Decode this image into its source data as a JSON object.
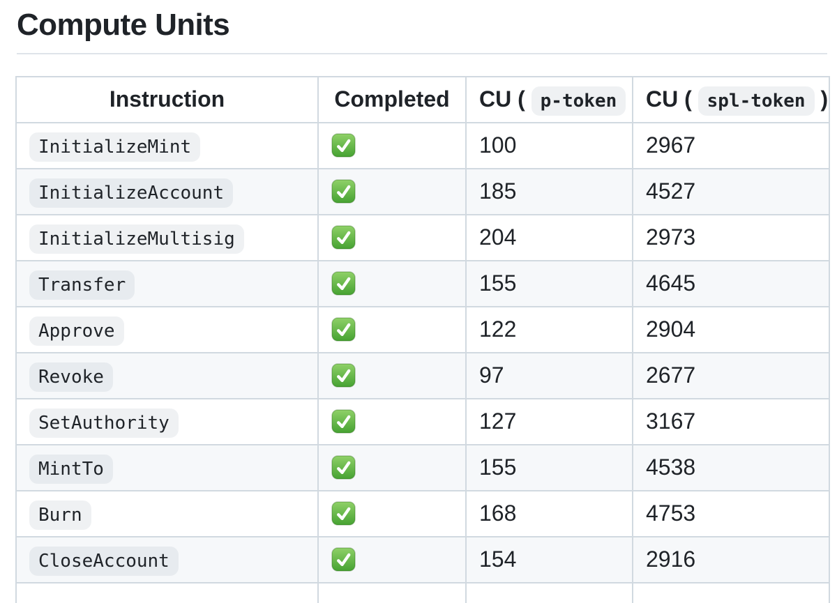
{
  "page": {
    "title": "Compute Units"
  },
  "table": {
    "headers": {
      "instruction": "Instruction",
      "completed": "Completed",
      "cu_p": {
        "prefix": "CU (",
        "code": "p-token",
        "suffix": ")"
      },
      "cu_spl": {
        "prefix": "CU (",
        "code": "spl-token",
        "suffix": ")"
      }
    },
    "completed_icon": "white-check-mark-emoji",
    "rows": [
      {
        "instruction": "InitializeMint",
        "completed": true,
        "cu_p_token": "100",
        "cu_spl_token": "2967"
      },
      {
        "instruction": "InitializeAccount",
        "completed": true,
        "cu_p_token": "185",
        "cu_spl_token": "4527"
      },
      {
        "instruction": "InitializeMultisig",
        "completed": true,
        "cu_p_token": "204",
        "cu_spl_token": "2973"
      },
      {
        "instruction": "Transfer",
        "completed": true,
        "cu_p_token": "155",
        "cu_spl_token": "4645"
      },
      {
        "instruction": "Approve",
        "completed": true,
        "cu_p_token": "122",
        "cu_spl_token": "2904"
      },
      {
        "instruction": "Revoke",
        "completed": true,
        "cu_p_token": "97",
        "cu_spl_token": "2677"
      },
      {
        "instruction": "SetAuthority",
        "completed": true,
        "cu_p_token": "127",
        "cu_spl_token": "3167"
      },
      {
        "instruction": "MintTo",
        "completed": true,
        "cu_p_token": "155",
        "cu_spl_token": "4538"
      },
      {
        "instruction": "Burn",
        "completed": true,
        "cu_p_token": "168",
        "cu_spl_token": "4753"
      },
      {
        "instruction": "CloseAccount",
        "completed": true,
        "cu_p_token": "154",
        "cu_spl_token": "2916"
      }
    ]
  },
  "colors": {
    "text": "#1f2328",
    "table_border": "#d1d9e0",
    "row_alt_background": "#f6f8fa",
    "code_badge_background": "rgba(175,184,193,0.2)",
    "check_green_top": "#8fd168",
    "check_green_bottom": "#46a232"
  }
}
